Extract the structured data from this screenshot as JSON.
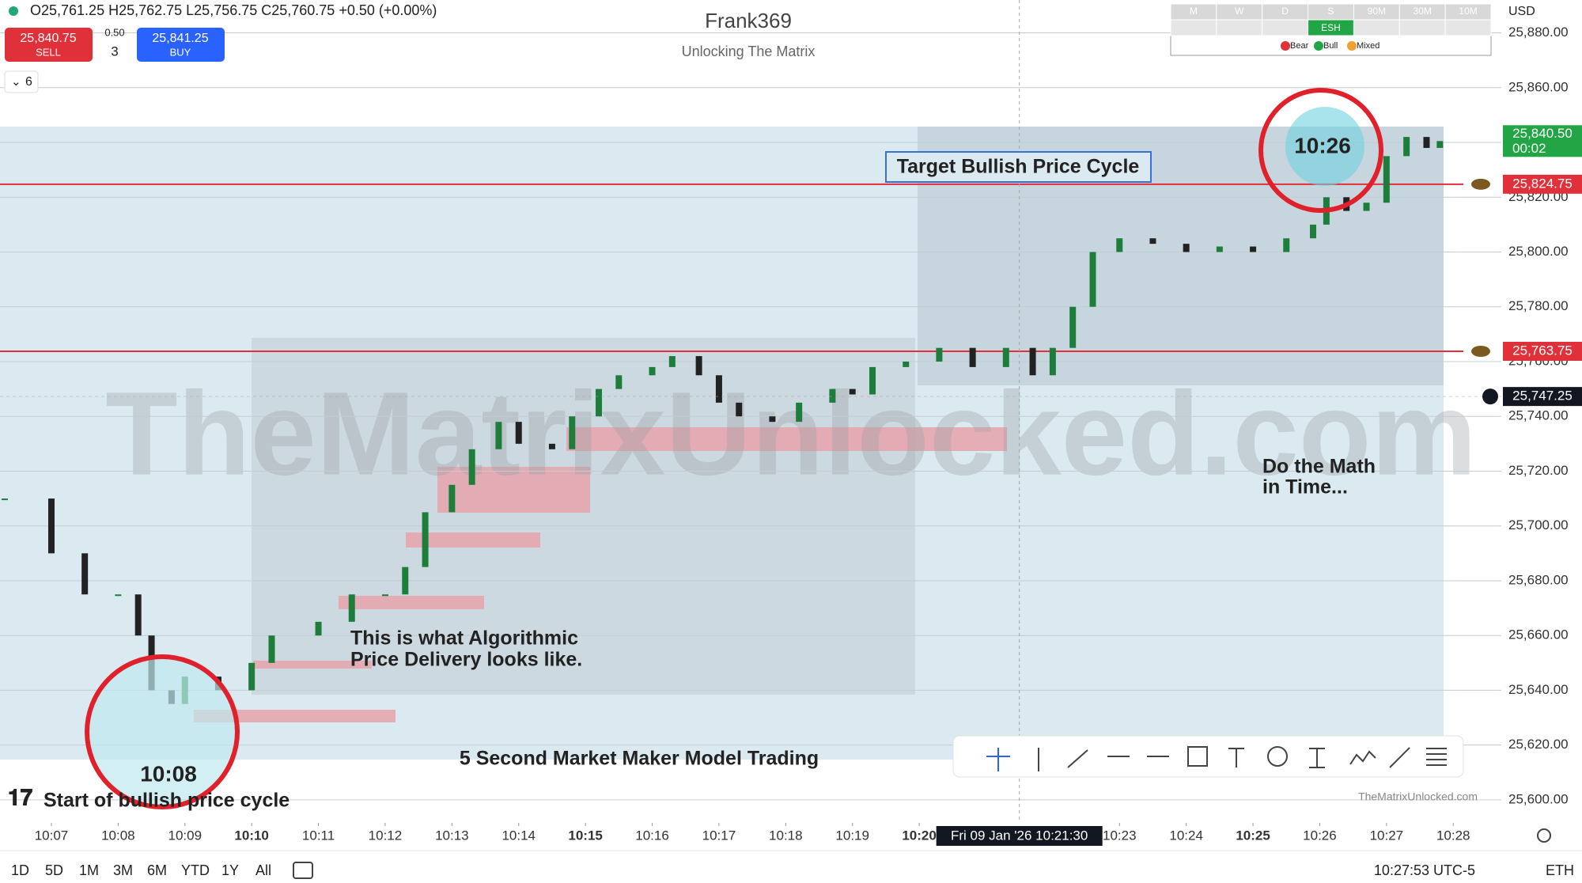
{
  "header": {
    "ohlc": "O25,761.25 H25,762.75 L25,756.75 C25,760.75 +0.50 (+0.00%)",
    "sell_price": "25,840.75",
    "sell": "SELL",
    "spread": "0.50",
    "qty": "3",
    "buy_price": "25,841.25",
    "buy": "BUY",
    "indicators": "6",
    "title": "Frank369",
    "subtitle": "Unlocking The Matrix",
    "currency": "USD"
  },
  "matrix": {
    "columns": [
      "M",
      "W",
      "D",
      "S",
      "90M",
      "30M",
      "10M"
    ],
    "cell": "ESH",
    "legend": [
      "Bear",
      "Bull",
      "Mixed"
    ]
  },
  "annotations": {
    "target": "Target Bullish Price Cycle",
    "algo_1": "This is what Algorithmic",
    "algo_2": "Price Delivery looks like.",
    "model": "5 Second Market Maker Model Trading",
    "start": "Start of bullish price cycle",
    "math_1": "Do the Math",
    "math_2": "in Time...",
    "watermark": "TheMatrixUnlocked.com",
    "site": "TheMatrixUnlocked.com",
    "circle_left": "10:08",
    "circle_right": "10:26"
  },
  "footer": {
    "ranges": [
      "1D",
      "5D",
      "1M",
      "3M",
      "6M",
      "YTD",
      "1Y",
      "All"
    ],
    "clock": "10:27:53 UTC-5",
    "session": "ETH"
  },
  "chart_data": {
    "type": "candlestick",
    "xlim": [
      6.23,
      28.72
    ],
    "ylim": [
      25591.6,
      25892
    ],
    "xticks": [
      {
        "value": 7,
        "label": "10:07"
      },
      {
        "value": 8,
        "label": "10:08"
      },
      {
        "value": 9,
        "label": "10:09"
      },
      {
        "value": 10,
        "label": "10:10"
      },
      {
        "value": 11,
        "label": "10:11"
      },
      {
        "value": 12,
        "label": "10:12"
      },
      {
        "value": 13,
        "label": "10:13"
      },
      {
        "value": 14,
        "label": "10:14"
      },
      {
        "value": 15,
        "label": "10:15"
      },
      {
        "value": 16,
        "label": "10:16"
      },
      {
        "value": 17,
        "label": "10:17"
      },
      {
        "value": 18,
        "label": "10:18"
      },
      {
        "value": 19,
        "label": "10:19"
      },
      {
        "value": 20,
        "label": "10:20"
      },
      {
        "value": 23,
        "label": "10:23"
      },
      {
        "value": 24,
        "label": "10:24"
      },
      {
        "value": 25,
        "label": "10:25"
      },
      {
        "value": 26,
        "label": "10:26"
      },
      {
        "value": 27,
        "label": "10:27"
      },
      {
        "value": 28,
        "label": "10:28"
      }
    ],
    "yticks": [
      {
        "value": 25600,
        "label": "25,600.00"
      },
      {
        "value": 25620,
        "label": "25,620.00"
      },
      {
        "value": 25640,
        "label": "25,640.00"
      },
      {
        "value": 25660,
        "label": "25,660.00"
      },
      {
        "value": 25680,
        "label": "25,680.00"
      },
      {
        "value": 25700,
        "label": "25,700.00"
      },
      {
        "value": 25720,
        "label": "25,720.00"
      },
      {
        "value": 25740,
        "label": "25,740.00"
      },
      {
        "value": 25760,
        "label": "25,760.00"
      },
      {
        "value": 25780,
        "label": "25,780.00"
      },
      {
        "value": 25800,
        "label": "25,800.00"
      },
      {
        "value": 25820,
        "label": "25,820.00"
      },
      {
        "value": 25840,
        "label": "25,840.00"
      },
      {
        "value": 25860,
        "label": "25,860.00"
      },
      {
        "value": 25880,
        "label": "25,880.00"
      }
    ],
    "x": [
      6.3,
      7,
      7.5,
      8,
      8.3,
      8.5,
      8.8,
      9,
      9.5,
      10,
      10.3,
      11,
      11.5,
      12,
      12.3,
      12.6,
      13,
      13.3,
      13.7,
      14,
      14.5,
      14.8,
      15.2,
      15.5,
      16,
      16.3,
      16.7,
      17,
      17.3,
      17.8,
      18.2,
      18.7,
      19,
      19.3,
      19.8,
      20.3,
      20.8,
      21.3,
      21.7,
      22,
      22.3,
      22.6,
      23,
      23.5,
      24,
      24.5,
      25,
      25.5,
      25.9,
      26.1,
      26.4,
      26.7,
      27,
      27.3,
      27.6,
      27.8
    ],
    "series": [
      {
        "name": "ES",
        "up_color": "#1e7d3a",
        "down_color": "#222222",
        "values": [
          25710,
          25690,
          25675,
          25675,
          25660,
          25640,
          25635,
          25645,
          25640,
          25650,
          25660,
          25665,
          25675,
          25675,
          25685,
          25705,
          25715,
          25728,
          25738,
          25730,
          25728,
          25740,
          25750,
          25755,
          25758,
          25762,
          25755,
          25745,
          25740,
          25738,
          25745,
          25750,
          25748,
          25758,
          25760,
          25765,
          25758,
          25765,
          25755,
          25765,
          25780,
          25800,
          25805,
          25803,
          25800,
          25802,
          25800,
          25805,
          25810,
          25820,
          25815,
          25818,
          25835,
          25842,
          25838,
          25840.5
        ]
      }
    ],
    "lines": [
      {
        "value": 25824.75,
        "label": "25,824.75",
        "color": "#e0303a"
      },
      {
        "value": 25763.75,
        "label": "25,763.75",
        "color": "#e0303a"
      }
    ],
    "last_price": {
      "value": 25840.5,
      "label": "25,840.50",
      "countdown": "00:02",
      "color": "#22a645"
    },
    "crosshair": {
      "x": 21.5,
      "time_label": "Fri 09 Jan '26 10:21:30",
      "value": 25747.25,
      "label": "25,747.25"
    }
  }
}
